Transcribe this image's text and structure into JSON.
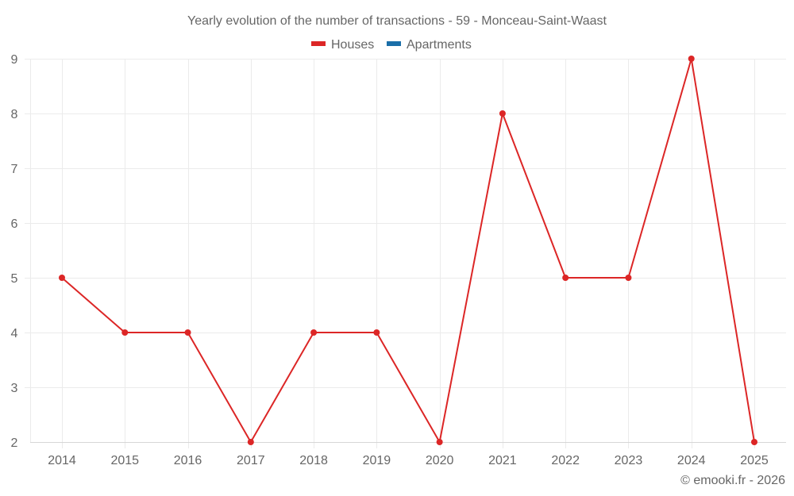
{
  "chart_data": {
    "type": "line",
    "title": "Yearly evolution of the number of transactions - 59 - Monceau-Saint-Waast",
    "xlabel": "",
    "ylabel": "",
    "categories": [
      "2014",
      "2015",
      "2016",
      "2017",
      "2018",
      "2019",
      "2020",
      "2021",
      "2022",
      "2023",
      "2024",
      "2025"
    ],
    "series": [
      {
        "name": "Houses",
        "color": "#dc2626",
        "values": [
          5,
          4,
          4,
          2,
          4,
          4,
          2,
          8,
          5,
          5,
          9,
          2
        ]
      },
      {
        "name": "Apartments",
        "color": "#1a6ea8",
        "values": []
      }
    ],
    "ylim": [
      2,
      9
    ],
    "yticks": [
      2,
      3,
      4,
      5,
      6,
      7,
      8,
      9
    ],
    "grid": true,
    "legend_position": "top-center"
  },
  "legend": [
    {
      "label": "Houses",
      "color": "#dc2626"
    },
    {
      "label": "Apartments",
      "color": "#1a6ea8"
    }
  ],
  "credit": "© emooki.fr - 2026"
}
